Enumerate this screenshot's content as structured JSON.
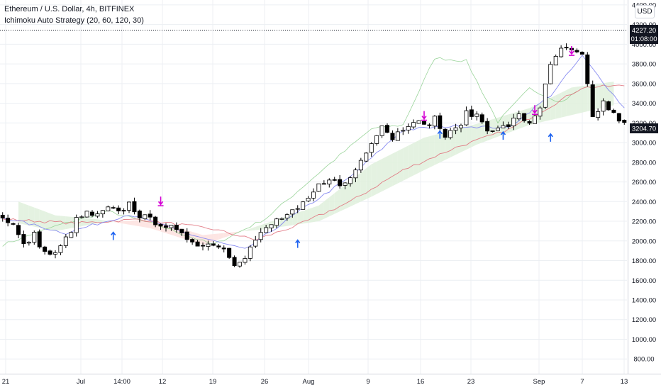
{
  "header": {
    "symbol_line": "Ethereum / U.S. Dollar, 4h, BITFINEX",
    "strategy_line": "Ichimoku Auto Strategy (20, 60, 120, 30)",
    "currency_button": "USD"
  },
  "price_tags": {
    "high_label": "4227.20",
    "countdown": "01:08:00",
    "last_price": "3204.70"
  },
  "colors": {
    "candle": "#000000",
    "conversion_line": "#7b7ff0",
    "base_line": "#e0707c",
    "lagging_span": "#8fcf8f",
    "cloud_bull": "#dff0dc",
    "cloud_bear": "#fde0de",
    "buy_arrow": "#1e63f0",
    "sell_arrow": "#d400d4",
    "grid": "#eceff3",
    "tag_dark": "#131722"
  },
  "chart_data": {
    "type": "candlestick",
    "symbol": "ETH/USD",
    "interval": "4h",
    "exchange": "BITFINEX",
    "ylim": [
      650,
      4450
    ],
    "y_ticks": [
      "4400.00",
      "4200.00",
      "4000.00",
      "3800.00",
      "3600.00",
      "3400.00",
      "3200.00",
      "3000.00",
      "2800.00",
      "2600.00",
      "2400.00",
      "2200.00",
      "2000.00",
      "1800.00",
      "1600.00",
      "1400.00",
      "1200.00",
      "1000.00",
      "800.00"
    ],
    "x_ticks": [
      "21",
      "Jul",
      "14:00",
      "12",
      "19",
      "26",
      "Aug",
      "9",
      "16",
      "23",
      "Sep",
      "7",
      "13"
    ],
    "close_anchors": [
      [
        0,
        2250
      ],
      [
        2,
        2160
      ],
      [
        4,
        1950
      ],
      [
        6,
        2060
      ],
      [
        8,
        1880
      ],
      [
        10,
        1860
      ],
      [
        12,
        2020
      ],
      [
        14,
        2210
      ],
      [
        16,
        2280
      ],
      [
        18,
        2250
      ],
      [
        20,
        2330
      ],
      [
        22,
        2280
      ],
      [
        24,
        2380
      ],
      [
        26,
        2260
      ],
      [
        28,
        2210
      ],
      [
        30,
        2180
      ],
      [
        32,
        2130
      ],
      [
        34,
        2050
      ],
      [
        36,
        2010
      ],
      [
        38,
        1950
      ],
      [
        40,
        1980
      ],
      [
        42,
        1920
      ],
      [
        44,
        1780
      ],
      [
        46,
        1850
      ],
      [
        48,
        2010
      ],
      [
        50,
        2120
      ],
      [
        52,
        2210
      ],
      [
        54,
        2260
      ],
      [
        56,
        2310
      ],
      [
        58,
        2420
      ],
      [
        60,
        2560
      ],
      [
        62,
        2650
      ],
      [
        64,
        2550
      ],
      [
        66,
        2640
      ],
      [
        68,
        2820
      ],
      [
        70,
        3020
      ],
      [
        72,
        3180
      ],
      [
        74,
        3050
      ],
      [
        76,
        3150
      ],
      [
        78,
        3240
      ],
      [
        80,
        3160
      ],
      [
        82,
        3250
      ],
      [
        84,
        3060
      ],
      [
        86,
        3130
      ],
      [
        88,
        3290
      ],
      [
        90,
        3280
      ],
      [
        92,
        3150
      ],
      [
        94,
        3130
      ],
      [
        96,
        3180
      ],
      [
        98,
        3270
      ],
      [
        100,
        3200
      ],
      [
        102,
        3370
      ],
      [
        104,
        3770
      ],
      [
        106,
        3960
      ],
      [
        108,
        3920
      ],
      [
        110,
        3880
      ],
      [
        112,
        3250
      ],
      [
        114,
        3410
      ],
      [
        116,
        3280
      ],
      [
        118,
        3204.7
      ]
    ],
    "ichimoku": {
      "params": [
        20,
        60,
        120,
        30
      ],
      "conversion_line": [
        [
          0,
          2240
        ],
        [
          12,
          2080
        ],
        [
          24,
          2270
        ],
        [
          36,
          2060
        ],
        [
          46,
          1910
        ],
        [
          56,
          2290
        ],
        [
          66,
          2650
        ],
        [
          76,
          3130
        ],
        [
          86,
          3170
        ],
        [
          96,
          3150
        ],
        [
          104,
          3480
        ],
        [
          110,
          3880
        ],
        [
          118,
          3350
        ]
      ],
      "base_line": [
        [
          0,
          2220
        ],
        [
          14,
          2180
        ],
        [
          26,
          2220
        ],
        [
          40,
          2120
        ],
        [
          48,
          2010
        ],
        [
          56,
          2160
        ],
        [
          66,
          2400
        ],
        [
          76,
          2720
        ],
        [
          86,
          2950
        ],
        [
          96,
          3130
        ],
        [
          104,
          3370
        ],
        [
          110,
          3560
        ],
        [
          118,
          3580
        ]
      ],
      "lagging_span": [
        [
          0,
          1960
        ],
        [
          10,
          2150
        ],
        [
          20,
          2300
        ],
        [
          30,
          2150
        ],
        [
          40,
          1960
        ],
        [
          50,
          2230
        ],
        [
          60,
          2690
        ],
        [
          70,
          3140
        ],
        [
          76,
          3180
        ],
        [
          82,
          3860
        ],
        [
          88,
          3830
        ],
        [
          94,
          3210
        ],
        [
          100,
          3550
        ],
        [
          106,
          3410
        ],
        [
          109,
          3520
        ]
      ],
      "cloud_span_a": [
        [
          3,
          2400
        ],
        [
          10,
          2260
        ],
        [
          18,
          2220
        ],
        [
          28,
          2130
        ],
        [
          38,
          1960
        ],
        [
          50,
          2180
        ],
        [
          60,
          2360
        ],
        [
          70,
          2780
        ],
        [
          80,
          3050
        ],
        [
          90,
          3190
        ],
        [
          100,
          3350
        ],
        [
          108,
          3560
        ],
        [
          116,
          3620
        ]
      ],
      "cloud_span_b": [
        [
          3,
          2180
        ],
        [
          10,
          2100
        ],
        [
          18,
          2180
        ],
        [
          28,
          2220
        ],
        [
          38,
          2060
        ],
        [
          50,
          2120
        ],
        [
          60,
          2200
        ],
        [
          70,
          2450
        ],
        [
          80,
          2720
        ],
        [
          90,
          2980
        ],
        [
          100,
          3180
        ],
        [
          108,
          3280
        ],
        [
          116,
          3380
        ]
      ]
    },
    "signals": [
      {
        "type": "buy",
        "bar": 21,
        "price": 2110
      },
      {
        "type": "sell",
        "bar": 30,
        "price": 2350
      },
      {
        "type": "buy",
        "bar": 56,
        "price": 2030
      },
      {
        "type": "sell",
        "bar": 80,
        "price": 3220
      },
      {
        "type": "buy",
        "bar": 83,
        "price": 3140
      },
      {
        "type": "buy",
        "bar": 95,
        "price": 3130
      },
      {
        "type": "sell",
        "bar": 101,
        "price": 3280
      },
      {
        "type": "buy",
        "bar": 104,
        "price": 3110
      },
      {
        "type": "sell",
        "bar": 108,
        "price": 3880
      }
    ],
    "grid": true
  }
}
